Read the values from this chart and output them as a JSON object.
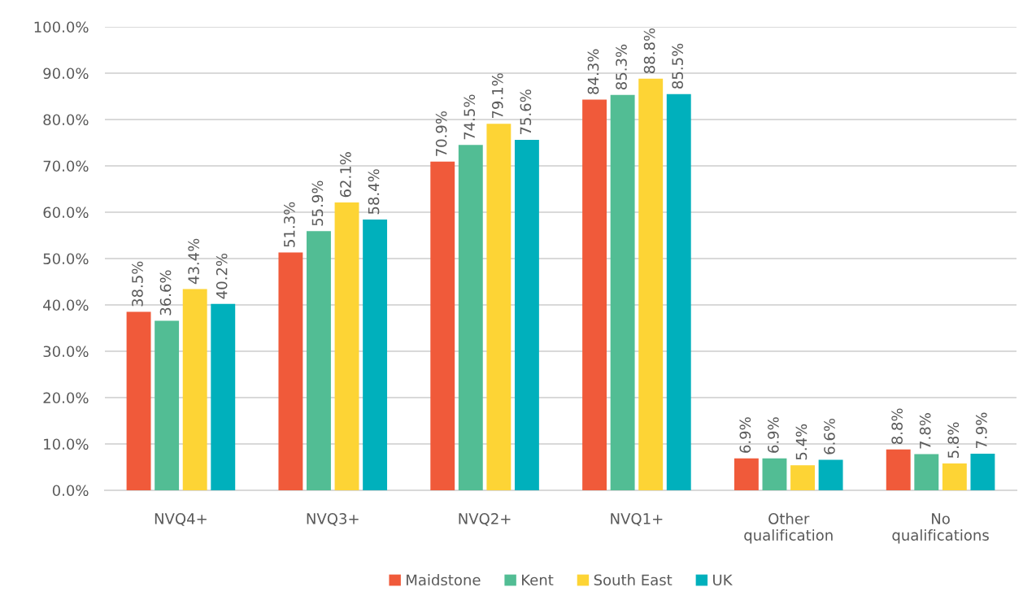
{
  "chart_data": {
    "type": "bar",
    "categories": [
      "NVQ4+",
      "NVQ3+",
      "NVQ2+",
      "NVQ1+",
      "Other\nqualification",
      "No\nqualifications"
    ],
    "series": [
      {
        "name": "Maidstone",
        "color": "#f05a3a",
        "values": [
          38.5,
          51.3,
          70.9,
          84.3,
          6.9,
          8.8
        ],
        "value_labels": [
          "38.5%",
          "51.3%",
          "70.9%",
          "84.3%",
          "6.9%",
          "8.8%"
        ]
      },
      {
        "name": "Kent",
        "color": "#52bd94",
        "values": [
          36.6,
          55.9,
          74.5,
          85.3,
          6.9,
          7.8
        ],
        "value_labels": [
          "36.6%",
          "55.9%",
          "74.5%",
          "85.3%",
          "6.9%",
          "7.8%"
        ]
      },
      {
        "name": "South East",
        "color": "#fdd435",
        "values": [
          43.4,
          62.1,
          79.1,
          88.8,
          5.4,
          5.8
        ],
        "value_labels": [
          "43.4%",
          "62.1%",
          "79.1%",
          "88.8%",
          "5.4%",
          "5.8%"
        ]
      },
      {
        "name": "UK",
        "color": "#00b0bc",
        "values": [
          40.2,
          58.4,
          75.6,
          85.5,
          6.6,
          7.9
        ],
        "value_labels": [
          "40.2%",
          "58.4%",
          "75.6%",
          "85.5%",
          "6.6%",
          "7.9%"
        ]
      }
    ],
    "ylim": [
      0,
      100
    ],
    "yticks": [
      {
        "value": 0,
        "label": "0.0%"
      },
      {
        "value": 10,
        "label": "10.0%"
      },
      {
        "value": 20,
        "label": "20.0%"
      },
      {
        "value": 30,
        "label": "30.0%"
      },
      {
        "value": 40,
        "label": "40.0%"
      },
      {
        "value": 50,
        "label": "50.0%"
      },
      {
        "value": 60,
        "label": "60.0%"
      },
      {
        "value": 70,
        "label": "70.0%"
      },
      {
        "value": 80,
        "label": "80.0%"
      },
      {
        "value": 90,
        "label": "90.0%"
      },
      {
        "value": 100,
        "label": "100.0%"
      }
    ],
    "grid": "y",
    "legend": "bottom"
  }
}
